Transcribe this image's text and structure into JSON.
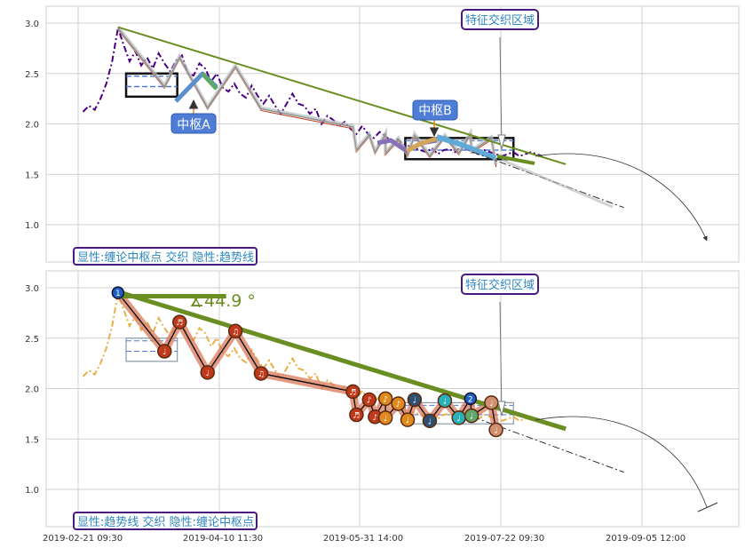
{
  "chart_data": [
    {
      "type": "line",
      "panel": "top",
      "ylim": [
        0.6,
        3.15
      ],
      "yticks": [
        "1.0",
        "1.5",
        "2.0",
        "2.5",
        "3.0"
      ],
      "price_series": [
        [
          0.5,
          2.12
        ],
        [
          1,
          2.18
        ],
        [
          1.5,
          2.14
        ],
        [
          2,
          2.25
        ],
        [
          2.5,
          2.4
        ],
        [
          3,
          2.62
        ],
        [
          3.5,
          2.95
        ],
        [
          4,
          2.78
        ],
        [
          4.5,
          2.62
        ],
        [
          5,
          2.72
        ],
        [
          5.5,
          2.58
        ],
        [
          6,
          2.66
        ],
        [
          6.5,
          2.55
        ],
        [
          7,
          2.7
        ],
        [
          7.5,
          2.6
        ],
        [
          8,
          2.52
        ],
        [
          8.5,
          2.63
        ],
        [
          9,
          2.68
        ],
        [
          9.5,
          2.5
        ],
        [
          10,
          2.48
        ],
        [
          10.5,
          2.6
        ],
        [
          11,
          2.55
        ],
        [
          11.5,
          2.42
        ],
        [
          12,
          2.5
        ],
        [
          12.5,
          2.36
        ],
        [
          13,
          2.32
        ],
        [
          13.5,
          2.4
        ],
        [
          14,
          2.3
        ],
        [
          14.5,
          2.26
        ],
        [
          15,
          2.38
        ],
        [
          15.5,
          2.28
        ],
        [
          16,
          2.2
        ],
        [
          16.5,
          2.28
        ],
        [
          17,
          2.18
        ],
        [
          17.5,
          2.1
        ],
        [
          18,
          2.2
        ],
        [
          18.5,
          2.3
        ],
        [
          19,
          2.2
        ],
        [
          19.5,
          2.18
        ],
        [
          20,
          2.1
        ],
        [
          20.5,
          2.15
        ],
        [
          21,
          2.0
        ],
        [
          21.5,
          2.08
        ],
        [
          22,
          2.04
        ],
        [
          22.5,
          1.98
        ],
        [
          23,
          2.02
        ],
        [
          23.5,
          1.95
        ],
        [
          24,
          1.9
        ],
        [
          24.5,
          1.98
        ],
        [
          25,
          1.9
        ],
        [
          25.5,
          1.86
        ],
        [
          26,
          1.92
        ],
        [
          26.5,
          1.88
        ],
        [
          27,
          1.82
        ],
        [
          27.5,
          1.85
        ],
        [
          28,
          1.8
        ],
        [
          28.5,
          1.78
        ],
        [
          29,
          1.76
        ],
        [
          29.5,
          1.74
        ],
        [
          30,
          1.72
        ],
        [
          30.5,
          1.76
        ],
        [
          31,
          1.7
        ],
        [
          31.5,
          1.74
        ],
        [
          32,
          1.75
        ],
        [
          32.5,
          1.72
        ],
        [
          33,
          1.78
        ],
        [
          33.5,
          1.75
        ],
        [
          34,
          1.72
        ],
        [
          34.5,
          1.7
        ],
        [
          35,
          1.74
        ],
        [
          35.5,
          1.72
        ],
        [
          36,
          1.7
        ],
        [
          36.5,
          1.68
        ],
        [
          37,
          1.7
        ],
        [
          37.5,
          1.72
        ],
        [
          38,
          1.68
        ],
        [
          38.5,
          1.7
        ],
        [
          39,
          1.72
        ],
        [
          39.5,
          1.7
        ],
        [
          40,
          1.68
        ]
      ],
      "zhongshu_boxes": [
        {
          "name": "中枢A",
          "x0": 4.2,
          "x1": 8.6,
          "y0": 2.27,
          "y1": 2.5,
          "dash": 2.37
        },
        {
          "name": "中枢B",
          "x0": 28.2,
          "x1": 37.5,
          "y0": 1.65,
          "y1": 1.86,
          "dash": 1.74
        }
      ],
      "trend_line": [
        [
          3.5,
          2.96
        ],
        [
          42,
          1.6
        ]
      ],
      "projection": [
        [
          34,
          1.72
        ],
        [
          47,
          1.17
        ]
      ],
      "legend_text": "显性:缠论中枢点 交织 隐性:趋势线",
      "labels": {
        "zhongshu_a": "中枢A",
        "zhongshu_b": "中枢B",
        "feature": "特征交织区域"
      }
    },
    {
      "type": "line",
      "panel": "bottom",
      "ylim": [
        0.6,
        3.15
      ],
      "yticks": [
        "1.0",
        "1.5",
        "2.0",
        "2.5",
        "3.0"
      ],
      "xticks": [
        "2019-02-21 09:30",
        "2019-04-10 11:30",
        "2019-05-31 14:00",
        "2019-07-22 09:30",
        "2019-09-05 12:00"
      ],
      "bi_points": [
        {
          "x": 3.5,
          "y": 2.95,
          "label": "1",
          "color": "#1f5fbf"
        },
        {
          "x": 7.5,
          "y": 2.37,
          "label": "♩",
          "color": "#c0391b"
        },
        {
          "x": 8.8,
          "y": 2.66,
          "label": "♬",
          "color": "#c0391b"
        },
        {
          "x": 11.2,
          "y": 2.16,
          "label": "♩",
          "color": "#c0391b"
        },
        {
          "x": 13.6,
          "y": 2.57,
          "label": "♫",
          "color": "#c0391b"
        },
        {
          "x": 15.8,
          "y": 2.15,
          "label": "♫",
          "color": "#c0391b"
        },
        {
          "x": 23.7,
          "y": 1.97,
          "label": "♬",
          "color": "#c0391b"
        },
        {
          "x": 24.0,
          "y": 1.74,
          "label": "♬",
          "color": "#c0391b"
        },
        {
          "x": 25.1,
          "y": 1.89,
          "label": "♪",
          "color": "#c0391b"
        },
        {
          "x": 25.6,
          "y": 1.72,
          "label": "♪",
          "color": "#c0391b"
        },
        {
          "x": 26.5,
          "y": 1.9,
          "label": "♪",
          "color": "#e08a1e"
        },
        {
          "x": 26.5,
          "y": 1.71,
          "label": "♩",
          "color": "#e08a1e"
        },
        {
          "x": 27.6,
          "y": 1.85,
          "label": "♪",
          "color": "#e08a1e"
        },
        {
          "x": 28.4,
          "y": 1.69,
          "label": "♩",
          "color": "#e08a1e"
        },
        {
          "x": 29.0,
          "y": 1.89,
          "label": "♩",
          "color": "#2f4f6f"
        },
        {
          "x": 30.3,
          "y": 1.68,
          "label": "♩",
          "color": "#2f4f6f"
        },
        {
          "x": 31.6,
          "y": 1.88,
          "label": "♩",
          "color": "#2ab0b8"
        },
        {
          "x": 32.8,
          "y": 1.71,
          "label": "♩",
          "color": "#2ab0b8"
        },
        {
          "x": 33.8,
          "y": 1.9,
          "label": "2",
          "color": "#1f5fbf"
        },
        {
          "x": 33.9,
          "y": 1.73,
          "label": "♩",
          "color": "#5fa86a"
        },
        {
          "x": 35.6,
          "y": 1.86,
          "label": "♩",
          "color": "#d09070"
        },
        {
          "x": 36.0,
          "y": 1.59,
          "label": "♩",
          "color": "#d09070"
        }
      ],
      "trend_line": [
        [
          3.5,
          2.96
        ],
        [
          42,
          1.6
        ]
      ],
      "horizontal_line": [
        [
          3.5,
          2.96
        ],
        [
          12.8,
          2.96
        ]
      ],
      "angle_label": "∡44.9 °",
      "legend_text": "显性:趋势线 交织 隐性:缠论中枢点",
      "labels": {
        "feature": "特征交织区域"
      }
    }
  ]
}
